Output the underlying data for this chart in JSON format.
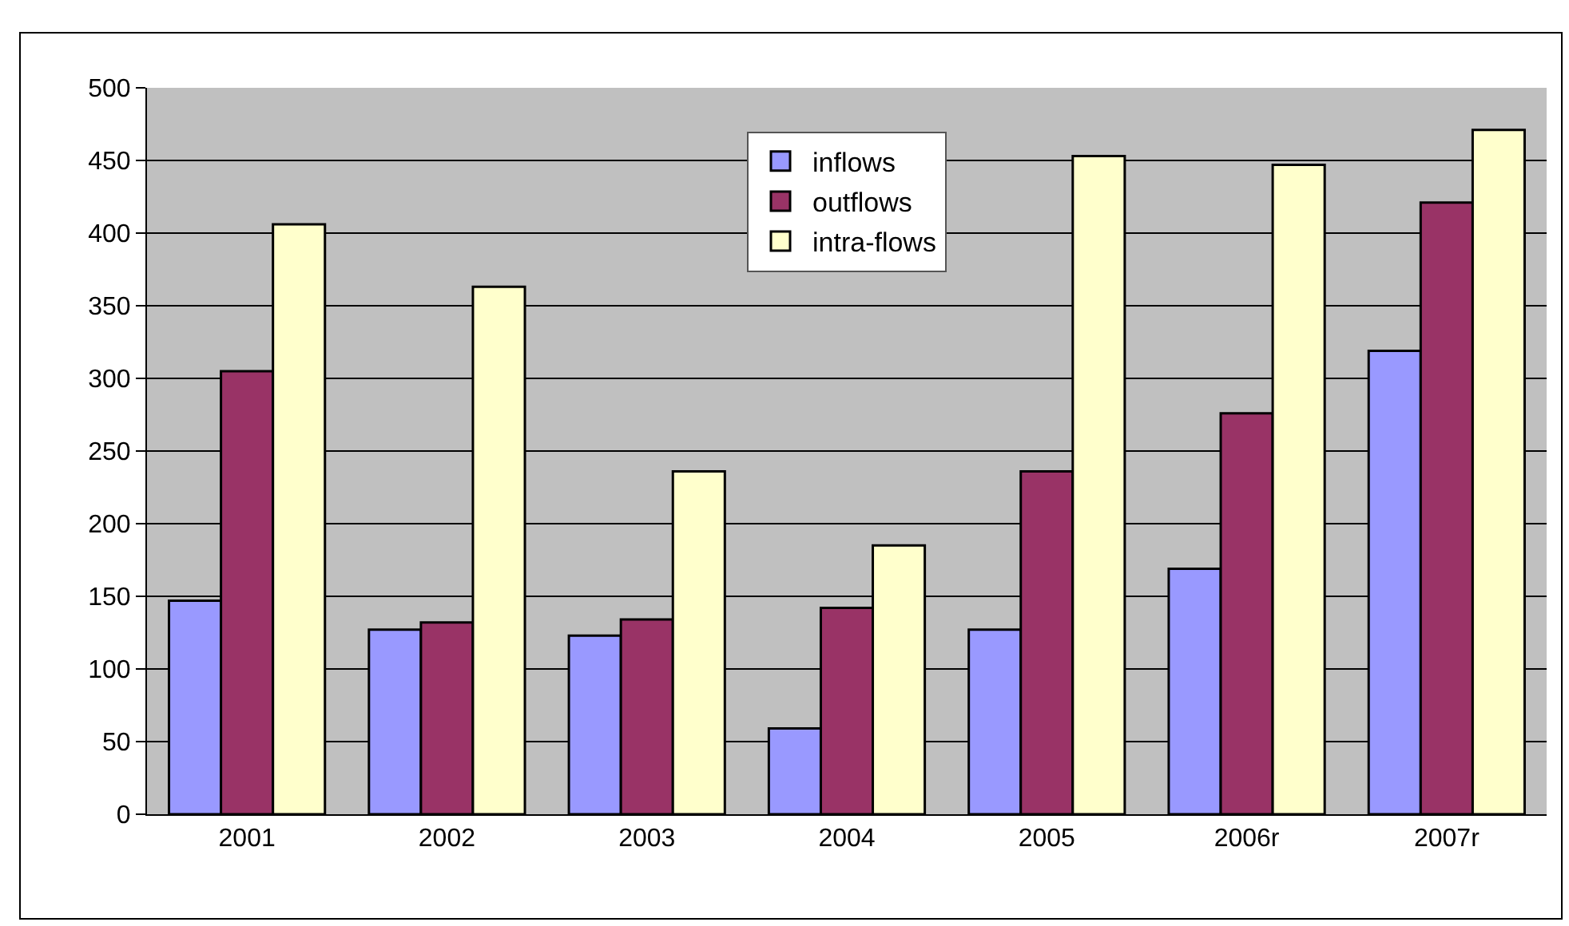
{
  "chart_data": {
    "type": "bar",
    "categories": [
      "2001",
      "2002",
      "2003",
      "2004",
      "2005",
      "2006r",
      "2007r"
    ],
    "series": [
      {
        "name": "inflows",
        "color": "#9999ff",
        "values": [
          147,
          127,
          123,
          59,
          127,
          169,
          319
        ]
      },
      {
        "name": "outflows",
        "color": "#993366",
        "values": [
          305,
          132,
          134,
          142,
          236,
          276,
          421
        ]
      },
      {
        "name": "intra-flows",
        "color": "#ffffcc",
        "values": [
          406,
          363,
          236,
          185,
          453,
          447,
          471
        ]
      }
    ],
    "ylim": [
      0,
      500
    ],
    "yticks": [
      0,
      50,
      100,
      150,
      200,
      250,
      300,
      350,
      400,
      450,
      500
    ],
    "grid": "y",
    "legend": "top"
  }
}
